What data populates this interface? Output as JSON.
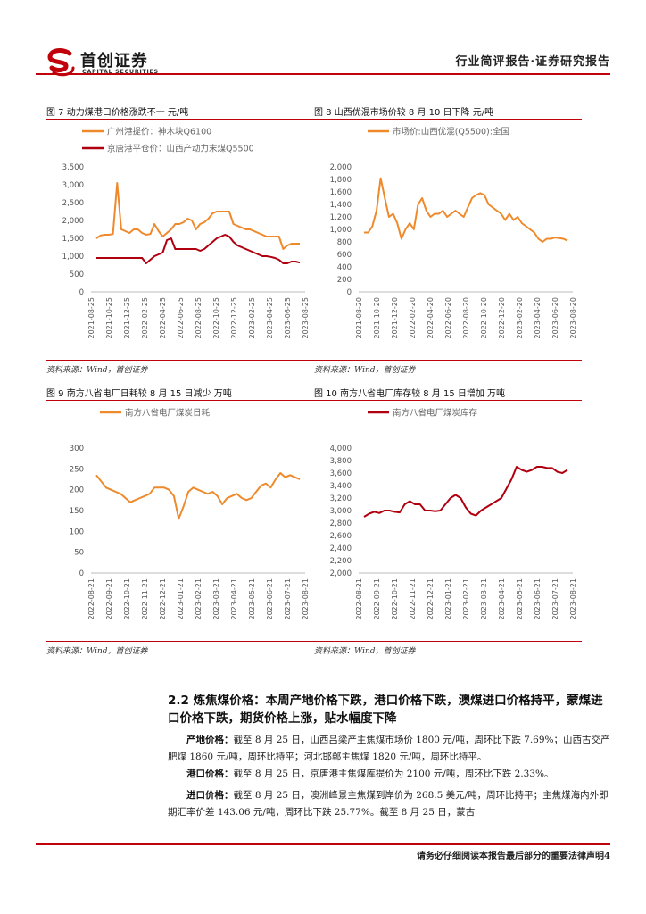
{
  "header": {
    "company_cn": "首创证券",
    "company_en": "CAPITAL SECURITIES",
    "report_type": "行业简评报告·证券研究报告"
  },
  "figures": [
    {
      "title": "图 7 动力煤港口价格涨跌不一  元/吨",
      "source": "资料来源：Wind，首创证券",
      "chart_data": {
        "type": "line",
        "title": "图 7 动力煤港口价格涨跌不一  元/吨",
        "x_ticks": [
          "2021-08-25",
          "2021-10-25",
          "2021-12-25",
          "2022-02-25",
          "2022-04-25",
          "2022-06-25",
          "2022-08-25",
          "2022-10-25",
          "2022-12-25",
          "2023-02-25",
          "2023-04-25",
          "2023-06-25",
          "2023-08-25"
        ],
        "y_ticks": [
          "0",
          "500",
          "1,000",
          "1,500",
          "2,000",
          "2,500",
          "3,000",
          "3,500"
        ],
        "ylim": [
          0,
          3500
        ],
        "legend_position": "top-left",
        "series": [
          {
            "name": "广州港提价：神木块Q6100",
            "color": "#ef8a2c",
            "values": [
              1500,
              1580,
              1600,
              1600,
              1620,
              3050,
              1750,
              1700,
              1650,
              1750,
              1750,
              1650,
              1600,
              1620,
              1900,
              1700,
              1550,
              1650,
              1750,
              1900,
              1900,
              1950,
              2050,
              2000,
              1750,
              1900,
              1950,
              2050,
              2200,
              2250,
              2250,
              2250,
              2250,
              1900,
              1850,
              1800,
              1750,
              1750,
              1700,
              1650,
              1600,
              1550,
              1550,
              1550,
              1550,
              1200,
              1300,
              1350,
              1350,
              1350
            ]
          },
          {
            "name": "京唐港平仓价：山西产动力末煤Q5500",
            "color": "#b00010",
            "values": [
              950,
              950,
              950,
              950,
              950,
              950,
              950,
              950,
              950,
              950,
              950,
              950,
              800,
              900,
              1000,
              1050,
              1100,
              1450,
              1500,
              1200,
              1200,
              1200,
              1200,
              1200,
              1200,
              1150,
              1200,
              1300,
              1400,
              1500,
              1550,
              1600,
              1550,
              1400,
              1300,
              1250,
              1200,
              1150,
              1100,
              1050,
              1000,
              1000,
              980,
              950,
              900,
              800,
              800,
              850,
              850,
              820
            ]
          }
        ]
      }
    },
    {
      "title": "图 8 山西优混市场价较 8 月 10 日下降  元/吨",
      "source": "资料来源：Wind，首创证券",
      "chart_data": {
        "type": "line",
        "title": "图 8 山西优混市场价较 8 月 10 日下降  元/吨",
        "x_ticks": [
          "2021-08-20",
          "2021-10-20",
          "2021-12-20",
          "2022-02-20",
          "2022-04-20",
          "2022-06-20",
          "2022-08-20",
          "2022-10-20",
          "2022-12-20",
          "2023-02-20",
          "2023-04-20",
          "2023-06-20",
          "2023-08-20"
        ],
        "y_ticks": [
          "0",
          "200",
          "400",
          "600",
          "800",
          "1,000",
          "1,200",
          "1,400",
          "1,600",
          "1,800",
          "2,000"
        ],
        "ylim": [
          0,
          2000
        ],
        "legend_position": "top",
        "series": [
          {
            "name": "市场价:山西优混(Q5500):全国",
            "color": "#ef8a2c",
            "values": [
              950,
              950,
              1050,
              1300,
              1820,
              1500,
              1200,
              1250,
              1100,
              850,
              1000,
              1100,
              1000,
              1400,
              1500,
              1300,
              1200,
              1250,
              1250,
              1300,
              1200,
              1250,
              1300,
              1250,
              1200,
              1350,
              1500,
              1550,
              1580,
              1550,
              1400,
              1350,
              1300,
              1250,
              1150,
              1250,
              1150,
              1200,
              1100,
              1050,
              1000,
              950,
              850,
              800,
              850,
              850,
              870,
              860,
              850,
              820
            ]
          }
        ]
      }
    },
    {
      "title": "图 9 南方八省电厂日耗较 8 月 15 日减少  万吨",
      "source": "资料来源：Wind，首创证券",
      "chart_data": {
        "type": "line",
        "title": "图 9 南方八省电厂日耗较 8 月 15 日减少  万吨",
        "x_ticks": [
          "2022-08-21",
          "2022-09-21",
          "2022-10-21",
          "2022-11-21",
          "2022-12-21",
          "2023-01-21",
          "2023-02-21",
          "2023-03-21",
          "2023-04-21",
          "2023-05-21",
          "2023-06-21",
          "2023-07-21",
          "2023-08-21"
        ],
        "y_ticks": [
          "0",
          "50",
          "100",
          "150",
          "200",
          "250",
          "300"
        ],
        "ylim": [
          0,
          300
        ],
        "legend_position": "top",
        "series": [
          {
            "name": "南方八省电厂煤炭日耗",
            "color": "#ef8a2c",
            "values": [
              235,
              220,
              205,
              200,
              195,
              190,
              180,
              170,
              175,
              180,
              185,
              190,
              205,
              205,
              205,
              200,
              185,
              130,
              160,
              195,
              205,
              200,
              195,
              190,
              195,
              185,
              165,
              180,
              185,
              190,
              180,
              175,
              180,
              195,
              210,
              215,
              205,
              225,
              240,
              230,
              235,
              230,
              225
            ]
          }
        ]
      }
    },
    {
      "title": "图 10 南方八省电厂库存较 8 月 15 日增加  万吨",
      "source": "资料来源：Wind，首创证券",
      "chart_data": {
        "type": "line",
        "title": "图 10 南方八省电厂库存较 8 月 15 日增加  万吨",
        "x_ticks": [
          "2022-08-21",
          "2022-09-21",
          "2022-10-21",
          "2022-11-21",
          "2022-12-21",
          "2023-01-21",
          "2023-02-21",
          "2023-03-21",
          "2023-04-21",
          "2023-05-21",
          "2023-06-21",
          "2023-07-21",
          "2023-08-21"
        ],
        "y_ticks": [
          "2,000",
          "2,200",
          "2,400",
          "2,600",
          "2,800",
          "3,000",
          "3,200",
          "3,400",
          "3,600",
          "3,800",
          "4,000"
        ],
        "ylim": [
          2000,
          4000
        ],
        "legend_position": "top",
        "series": [
          {
            "name": "南方八省电厂煤炭库存",
            "color": "#b00010",
            "values": [
              2900,
              2950,
              2980,
              2960,
              3000,
              3000,
              2980,
              2970,
              3100,
              3150,
              3100,
              3100,
              3000,
              3000,
              2990,
              3000,
              3100,
              3200,
              3250,
              3200,
              3050,
              2950,
              2920,
              3000,
              3050,
              3100,
              3150,
              3200,
              3350,
              3500,
              3700,
              3650,
              3620,
              3650,
              3700,
              3700,
              3680,
              3680,
              3620,
              3600,
              3650
            ]
          }
        ]
      }
    }
  ],
  "section": {
    "title": "2.2 炼焦煤价格：本周产地价格下跌，港口价格下跌，澳煤进口价格持平，蒙煤进口价格下跌，期货价格上涨，贴水幅度下降",
    "paragraphs": [
      {
        "label": "产地价格：",
        "text": "截至 8 月 25 日，山西吕梁产主焦煤市场价 1800 元/吨，周环比下跌 7.69%；山西古交产肥煤 1860 元/吨，周环比持平；河北邯郸主焦煤 1820 元/吨，周环比持平。"
      },
      {
        "label": "港口价格：",
        "text": "截至 8 月 25 日，京唐港主焦煤库提价为 2100 元/吨，周环比下跌 2.33%。"
      },
      {
        "label": "进口价格：",
        "text": "截至 8 月 25 日，澳洲峰景主焦煤到岸价为 268.5 美元/吨，周环比持平；主焦煤海内外即期汇率价差 143.06 元/吨，周环比下跌 25.77%。截至 8 月 25 日，蒙古"
      }
    ]
  },
  "footer": {
    "text": "请务必仔细阅读本报告最后部分的重要法律声明4"
  }
}
